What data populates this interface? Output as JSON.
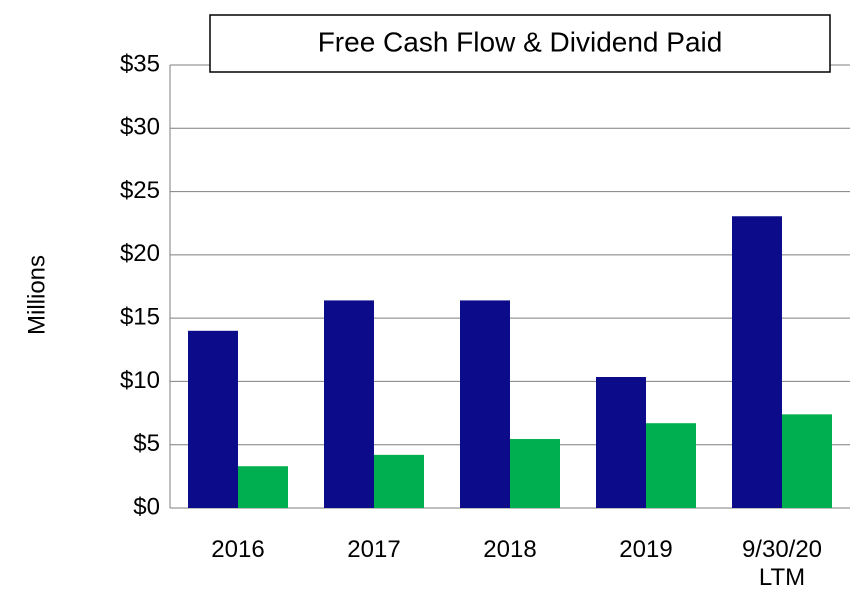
{
  "chart_data": {
    "type": "bar",
    "title": "Free Cash Flow & Dividend Paid",
    "ylabel": "Millions",
    "categories": [
      "2016",
      "2017",
      "2018",
      "2019",
      "9/30/20 LTM"
    ],
    "series": [
      {
        "color": "#0c0c8a",
        "values": [
          14.0,
          16.4,
          16.4,
          10.35,
          23.05
        ]
      },
      {
        "color": "#00b050",
        "values": [
          3.3,
          4.2,
          5.45,
          6.7,
          7.4
        ]
      }
    ],
    "ylim": [
      0,
      35
    ],
    "yticks": [
      {
        "value": 0,
        "label": "$0"
      },
      {
        "value": 5,
        "label": "$5"
      },
      {
        "value": 10,
        "label": "$10"
      },
      {
        "value": 15,
        "label": "$15"
      },
      {
        "value": 20,
        "label": "$20"
      },
      {
        "value": 25,
        "label": "$25"
      },
      {
        "value": 30,
        "label": "$30"
      },
      {
        "value": 35,
        "label": "$35"
      }
    ],
    "grid": true
  }
}
